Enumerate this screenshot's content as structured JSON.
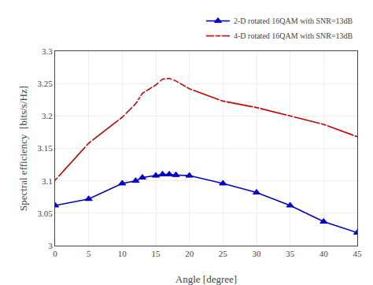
{
  "chart_data": {
    "type": "line",
    "x": [
      0,
      5,
      10,
      12,
      13,
      15,
      16,
      17,
      18,
      20,
      25,
      30,
      35,
      40,
      45
    ],
    "series": [
      {
        "name": "2-D rotated 16QAM with SNR=13dB",
        "color": "#0000cd",
        "marker": "triangle-up",
        "values": [
          3.062,
          3.072,
          3.096,
          3.1,
          3.105,
          3.108,
          3.11,
          3.11,
          3.109,
          3.108,
          3.096,
          3.082,
          3.062,
          3.037,
          3.02
        ]
      },
      {
        "name": "4-D rotated 16QAM with SNR=13dB",
        "color": "#cc0000",
        "marker": "square-open",
        "values": [
          3.101,
          3.158,
          3.198,
          3.219,
          3.235,
          3.248,
          3.257,
          3.258,
          3.254,
          3.242,
          3.223,
          3.213,
          3.2,
          3.187,
          3.168
        ]
      }
    ],
    "xlabel": "Angle [degree]",
    "ylabel": "Spectral efficiency  [bits/s/Hz]",
    "xlim": [
      0,
      45
    ],
    "ylim": [
      3.0,
      3.3
    ],
    "xticks": [
      0,
      5,
      10,
      15,
      20,
      25,
      30,
      35,
      40,
      45
    ],
    "yticks": [
      3,
      3.05,
      3.1,
      3.15,
      3.2,
      3.25,
      3.3
    ],
    "grid": true,
    "legend": "upper right"
  }
}
